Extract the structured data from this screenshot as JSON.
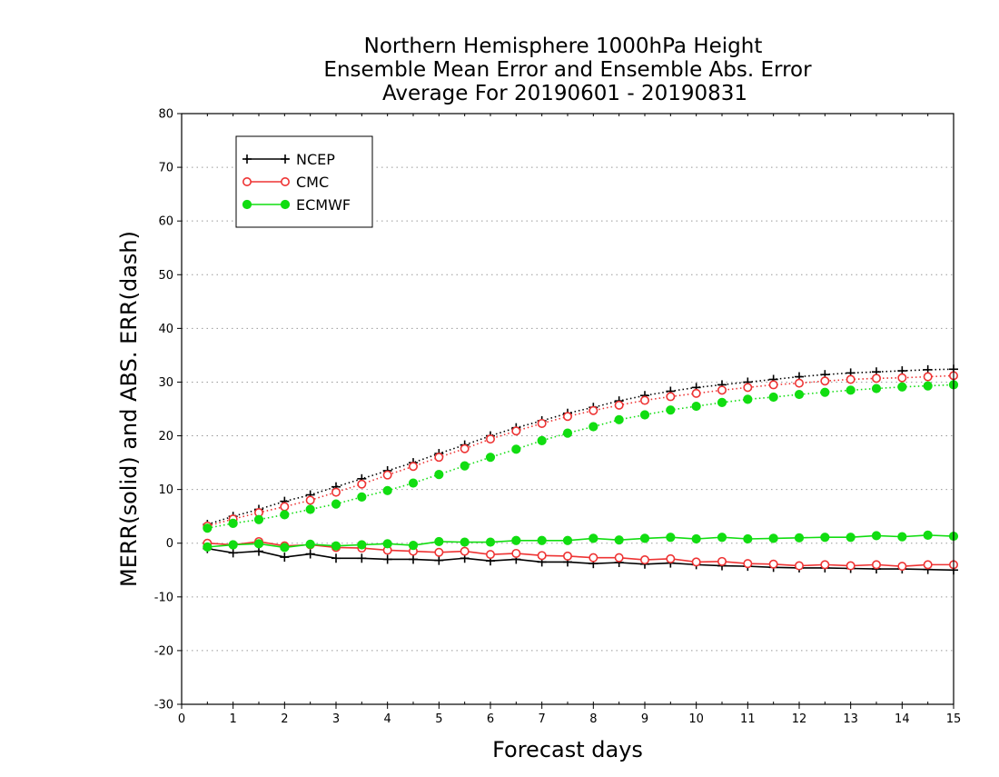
{
  "chart_data": {
    "type": "line",
    "title": [
      "Northern Hemisphere 1000hPa Height",
      "Ensemble Mean Error and Ensemble Abs. Error",
      "Average For 20190601 - 20190831"
    ],
    "xlabel": "Forecast days",
    "ylabel": "MERR(solid) and ABS. ERR(dash)",
    "xlim": [
      0,
      15
    ],
    "ylim": [
      -30,
      80
    ],
    "xticks": [
      0,
      1,
      2,
      3,
      4,
      5,
      6,
      7,
      8,
      9,
      10,
      11,
      12,
      13,
      14,
      15
    ],
    "yticks": [
      -30,
      -20,
      -10,
      0,
      10,
      20,
      30,
      40,
      50,
      60,
      70,
      80
    ],
    "ytick_labels": [
      "-30",
      "-20",
      "-10",
      "0",
      "10",
      "20",
      "30",
      "40",
      "50",
      "60",
      "70",
      "80"
    ],
    "grid": "horizontal dotted",
    "legend_position": "top-left",
    "x": [
      0.5,
      1,
      1.5,
      2,
      2.5,
      3,
      3.5,
      4,
      4.5,
      5,
      5.5,
      6,
      6.5,
      7,
      7.5,
      8,
      8.5,
      9,
      9.5,
      10,
      10.5,
      11,
      11.5,
      12,
      12.5,
      13,
      13.5,
      14,
      14.5,
      15
    ],
    "series": [
      {
        "name": "NCEP",
        "color": "#000000",
        "marker": "plus",
        "merr": [
          -1.0,
          -1.8,
          -1.5,
          -2.6,
          -2.0,
          -2.8,
          -2.8,
          -3.0,
          -3.0,
          -3.2,
          -2.8,
          -3.3,
          -3.0,
          -3.5,
          -3.5,
          -3.8,
          -3.6,
          -3.9,
          -3.7,
          -4.0,
          -4.2,
          -4.3,
          -4.5,
          -4.6,
          -4.6,
          -4.7,
          -4.8,
          -4.8,
          -4.9,
          -5.0
        ],
        "abs_err": [
          3.5,
          5.0,
          6.3,
          7.8,
          9.0,
          10.5,
          12.0,
          13.5,
          15.0,
          16.7,
          18.3,
          20.0,
          21.5,
          22.8,
          24.2,
          25.3,
          26.5,
          27.5,
          28.3,
          29.0,
          29.5,
          30.0,
          30.5,
          31.0,
          31.4,
          31.7,
          31.9,
          32.1,
          32.3,
          32.4
        ]
      },
      {
        "name": "CMC",
        "color": "#ee3333",
        "marker": "open-circle",
        "merr": [
          0.0,
          -0.3,
          0.3,
          -0.5,
          -0.3,
          -0.8,
          -0.9,
          -1.3,
          -1.5,
          -1.7,
          -1.5,
          -2.1,
          -1.9,
          -2.3,
          -2.4,
          -2.7,
          -2.7,
          -3.1,
          -2.9,
          -3.5,
          -3.4,
          -3.8,
          -3.9,
          -4.2,
          -4.0,
          -4.2,
          -4.0,
          -4.3,
          -4.0,
          -4.0
        ],
        "abs_err": [
          3.2,
          4.5,
          5.7,
          6.8,
          8.0,
          9.5,
          11.0,
          12.7,
          14.3,
          16.0,
          17.6,
          19.4,
          20.9,
          22.3,
          23.6,
          24.7,
          25.7,
          26.6,
          27.3,
          27.9,
          28.5,
          29.0,
          29.5,
          29.8,
          30.2,
          30.5,
          30.7,
          30.8,
          31.0,
          31.2
        ]
      },
      {
        "name": "ECMWF",
        "color": "#11dd11",
        "marker": "filled-circle",
        "merr": [
          -0.7,
          -0.3,
          -0.1,
          -0.8,
          -0.2,
          -0.5,
          -0.3,
          -0.1,
          -0.4,
          0.3,
          0.2,
          0.2,
          0.5,
          0.5,
          0.5,
          0.9,
          0.6,
          0.9,
          1.1,
          0.8,
          1.1,
          0.8,
          0.9,
          1.0,
          1.1,
          1.1,
          1.4,
          1.2,
          1.5,
          1.3
        ],
        "abs_err": [
          2.8,
          3.7,
          4.4,
          5.3,
          6.3,
          7.3,
          8.6,
          9.8,
          11.2,
          12.8,
          14.4,
          16.0,
          17.5,
          19.1,
          20.5,
          21.7,
          23.0,
          23.9,
          24.8,
          25.5,
          26.2,
          26.8,
          27.2,
          27.7,
          28.1,
          28.5,
          28.8,
          29.1,
          29.3,
          29.5
        ]
      }
    ]
  }
}
